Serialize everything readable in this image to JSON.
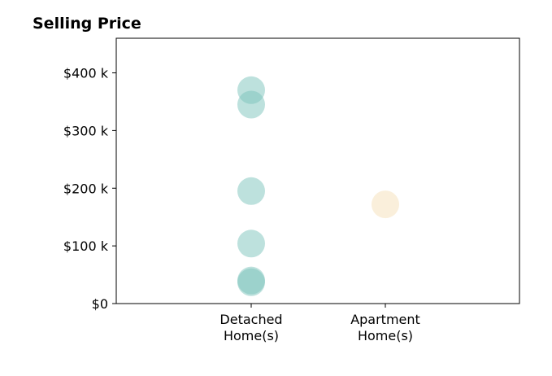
{
  "chart_data": {
    "type": "scatter",
    "title": "Selling Price",
    "xlabel": "",
    "ylabel": "",
    "categories": [
      [
        "Detached",
        "Home(s)"
      ],
      [
        "Apartment",
        "Home(s)"
      ]
    ],
    "ylim": [
      0,
      460000
    ],
    "yticks": [
      {
        "value": 0,
        "label": "$0"
      },
      {
        "value": 100000,
        "label": "$100 k"
      },
      {
        "value": 200000,
        "label": "$200 k"
      },
      {
        "value": 300000,
        "label": "$300 k"
      },
      {
        "value": 400000,
        "label": "$400 k"
      }
    ],
    "grid": false,
    "series": [
      {
        "category": 0,
        "color": "#7cc4bc",
        "values": [
          370000,
          345000,
          195000,
          104000,
          40000,
          37000
        ]
      },
      {
        "category": 1,
        "color": "#f5e0b8",
        "values": [
          172000
        ]
      }
    ]
  }
}
